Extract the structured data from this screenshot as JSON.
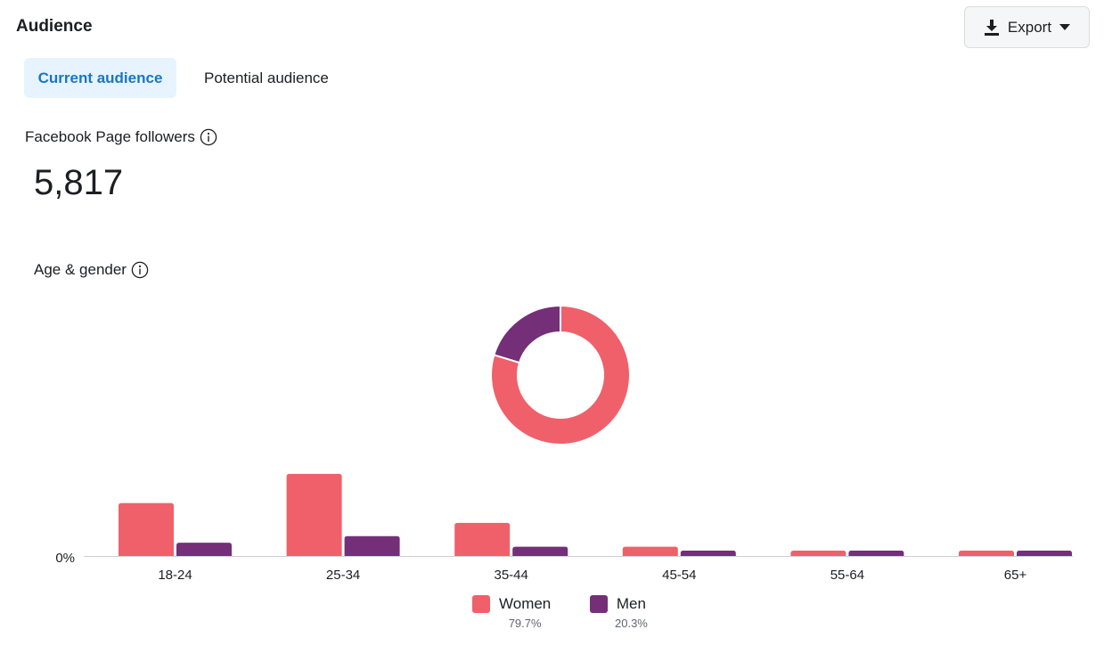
{
  "header": {
    "title": "Audience"
  },
  "export": {
    "label": "Export"
  },
  "tabs": [
    {
      "label": "Current audience",
      "active": true
    },
    {
      "label": "Potential audience",
      "active": false
    }
  ],
  "followers": {
    "label": "Facebook Page followers",
    "value": "5,817"
  },
  "age_gender": {
    "label": "Age & gender"
  },
  "colors": {
    "women": "#f0606a",
    "men": "#742f78",
    "accent": "#1877c2"
  },
  "chart_data": [
    {
      "type": "pie",
      "variant": "donut",
      "categories": [
        "Women",
        "Men"
      ],
      "values": [
        79.7,
        20.3
      ],
      "labels": [
        "79.7%",
        "20.3%"
      ]
    },
    {
      "type": "bar",
      "categories": [
        "18-24",
        "25-34",
        "35-44",
        "45-54",
        "55-64",
        "65+"
      ],
      "series": [
        {
          "name": "Women",
          "values": [
            20,
            31,
            12.5,
            3.5,
            2,
            2
          ]
        },
        {
          "name": "Men",
          "values": [
            5,
            7.5,
            3.5,
            2,
            2,
            2
          ]
        }
      ],
      "ytick_labels": [
        "0%"
      ],
      "ylim": [
        0,
        35
      ],
      "legend": "bottom"
    }
  ]
}
